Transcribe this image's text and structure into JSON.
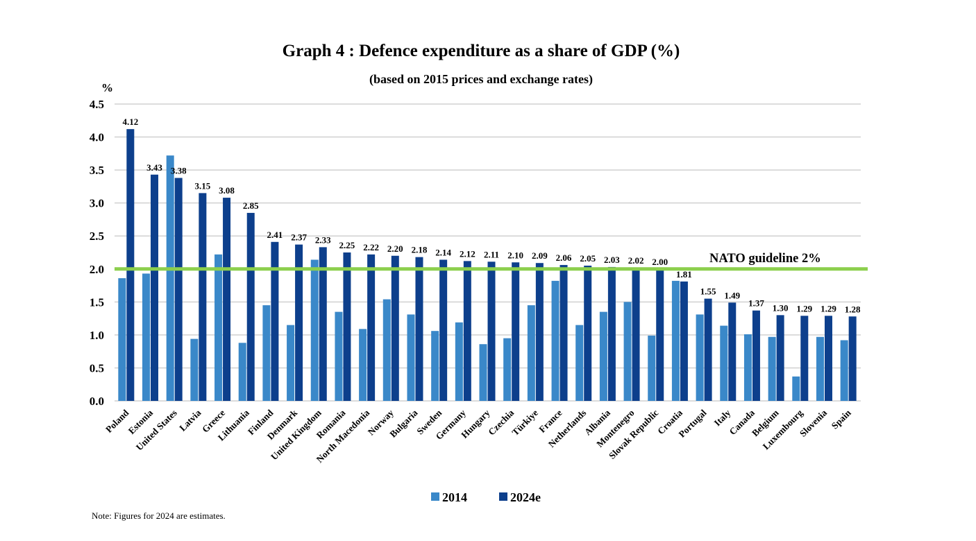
{
  "chart_data": {
    "type": "bar",
    "title": "Graph 4 : Defence expenditure as a share of GDP (%)",
    "subtitle": "(based on 2015 prices and exchange rates)",
    "ylabel": "%",
    "xlabel": "",
    "ylim": [
      0,
      4.5
    ],
    "yticks": [
      "0.0",
      "0.5",
      "1.0",
      "1.5",
      "2.0",
      "2.5",
      "3.0",
      "3.5",
      "4.0",
      "4.5"
    ],
    "grid": true,
    "legend_position": "bottom",
    "categories": [
      "Poland",
      "Estonia",
      "United States",
      "Latvia",
      "Greece",
      "Lithuania",
      "Finland",
      "Denmark",
      "United Kingdom",
      "Romania",
      "North Macedonia",
      "Norway",
      "Bulgaria",
      "Sweden",
      "Germany",
      "Hungary",
      "Czechia",
      "Türkiye",
      "France",
      "Netherlands",
      "Albania",
      "Montenegro",
      "Slovak Republic",
      "Croatia",
      "Portugal",
      "Italy",
      "Canada",
      "Belgium",
      "Luxembourg",
      "Slovenia",
      "Spain"
    ],
    "series": [
      {
        "name": "2014",
        "color": "#3a88c9",
        "values": [
          1.86,
          1.93,
          3.72,
          0.94,
          2.22,
          0.88,
          1.45,
          1.15,
          2.14,
          1.35,
          1.09,
          1.54,
          1.31,
          1.06,
          1.19,
          0.86,
          0.95,
          1.45,
          1.82,
          1.15,
          1.35,
          1.5,
          0.99,
          1.82,
          1.31,
          1.14,
          1.01,
          0.97,
          0.37,
          0.97,
          0.92
        ]
      },
      {
        "name": "2024e",
        "color": "#0d3f8c",
        "values": [
          4.12,
          3.43,
          3.38,
          3.15,
          3.08,
          2.85,
          2.41,
          2.37,
          2.33,
          2.25,
          2.22,
          2.2,
          2.18,
          2.14,
          2.12,
          2.11,
          2.1,
          2.09,
          2.06,
          2.05,
          2.03,
          2.02,
          2.0,
          1.81,
          1.55,
          1.49,
          1.37,
          1.3,
          1.29,
          1.29,
          1.28
        ],
        "data_labels": [
          "4.12",
          "3.43",
          "3.38",
          "3.15",
          "3.08",
          "2.85",
          "2.41",
          "2.37",
          "2.33",
          "2.25",
          "2.22",
          "2.20",
          "2.18",
          "2.14",
          "2.12",
          "2.11",
          "2.10",
          "2.09",
          "2.06",
          "2.05",
          "2.03",
          "2.02",
          "2.00",
          "1.81",
          "1.55",
          "1.49",
          "1.37",
          "1.30",
          "1.29",
          "1.29",
          "1.28"
        ]
      }
    ],
    "reference_line": {
      "value": 2.0,
      "label": "NATO guideline 2%",
      "color": "#8ccf4d"
    },
    "note": "Note: Figures for 2024 are estimates."
  }
}
